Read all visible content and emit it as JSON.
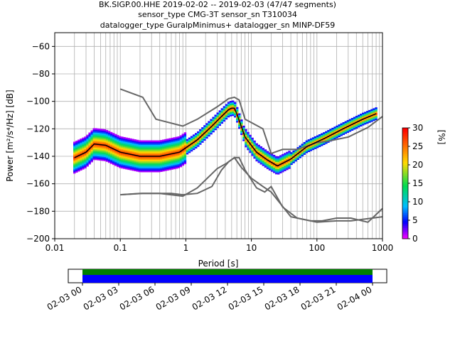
{
  "title": {
    "line1": "BK.SIGP.00.HHE   2019-02-02 -- 2019-02-03  (47/47 segments)",
    "line2": "sensor_type CMG-3T sensor_sn T310034",
    "line3": "datalogger_type GuralpMinimus+ datalogger_sn MINP-DF59"
  },
  "chart_data": [
    {
      "type": "heatmap",
      "title": "BK.SIGP.00.HHE   2019-02-02 -- 2019-02-03  (47/47 segments)",
      "xlabel": "Period [s]",
      "ylabel": "Power [m²/s⁴/Hz] [dB]",
      "xscale": "log",
      "xlim": [
        0.01,
        1000
      ],
      "ylim": [
        -200,
        -50
      ],
      "x_ticks": [
        0.01,
        0.1,
        1,
        10,
        100,
        1000
      ],
      "x_tick_labels": [
        "0.01",
        "0.1",
        "1",
        "10",
        "100",
        "1000"
      ],
      "y_ticks": [
        -200,
        -180,
        -160,
        -140,
        -120,
        -100,
        -80,
        -60
      ],
      "y_tick_labels": [
        "−200",
        "−180",
        "−160",
        "−140",
        "−120",
        "−100",
        "−80",
        "−60"
      ],
      "grid": true,
      "colorbar": {
        "label": "[%]",
        "range": [
          0,
          30
        ],
        "ticks": [
          0,
          5,
          10,
          15,
          20,
          25,
          30
        ],
        "tick_labels": [
          "0",
          "5",
          "10",
          "15",
          "20",
          "25",
          "30"
        ]
      },
      "series": [
        {
          "x": [
            0.1,
            0.2,
            0.35,
            0.6,
            0.9,
            1.5,
            2.5,
            3.5,
            4.5,
            5.5,
            7,
            10,
            15,
            20,
            40,
            100,
            200,
            330,
            1000
          ],
          "y": [
            -168,
            -167,
            -167,
            -167,
            -168,
            -167,
            -162,
            -150,
            -144,
            -141,
            -148,
            -156,
            -162,
            -166,
            -184,
            -188,
            -187,
            -187,
            -184
          ]
        },
        {
          "x": [
            0.1,
            0.22,
            0.4,
            0.9,
            1.5,
            3,
            4.2,
            5.5,
            6.5,
            8,
            12,
            16,
            20,
            30,
            50,
            80,
            120,
            200,
            330,
            600,
            1000
          ],
          "y": [
            -168,
            -167,
            -167,
            -169,
            -163,
            -149,
            -145,
            -141,
            -141,
            -150,
            -163,
            -166,
            -162,
            -177,
            -185,
            -187,
            -187,
            -185,
            -185,
            -188,
            -178
          ]
        },
        {
          "x": [
            0.1,
            0.22,
            0.35,
            0.9,
            1.5,
            3,
            4.5,
            5.5,
            6.5,
            8,
            15,
            20,
            30,
            50,
            100,
            150,
            300,
            600,
            1000
          ],
          "y": [
            -91,
            -97,
            -113,
            -118,
            -113,
            -104,
            -98,
            -97,
            -99,
            -113,
            -120,
            -138,
            -135,
            -135,
            -130,
            -129,
            -126,
            -119,
            -111
          ]
        },
        {
          "x": [
            0.02,
            0.03,
            0.04,
            0.06,
            0.1,
            0.2,
            0.4,
            0.8,
            1.5,
            2.5,
            3.5,
            4.5,
            5,
            5.5,
            6,
            8,
            12,
            18,
            25,
            40,
            70,
            130,
            250,
            500,
            800
          ],
          "y": [
            -141,
            -137,
            -131,
            -132,
            -137,
            -140,
            -140,
            -137,
            -128,
            -118,
            -111,
            -106,
            -105,
            -105,
            -109,
            -126,
            -137,
            -143,
            -147,
            -142,
            -133,
            -127,
            -120,
            -113,
            -109
          ]
        }
      ]
    },
    {
      "type": "bar",
      "x_tick_labels": [
        "02-03 00",
        "02-03 03",
        "02-03 06",
        "02-03 09",
        "02-03 12",
        "02-03 15",
        "02-03 18",
        "02-03 21",
        "02-04 00"
      ],
      "series": [
        {
          "values": [
            1
          ]
        },
        {
          "values": [
            1
          ]
        }
      ],
      "colors": [
        "#0000ff",
        "#008000"
      ]
    }
  ]
}
